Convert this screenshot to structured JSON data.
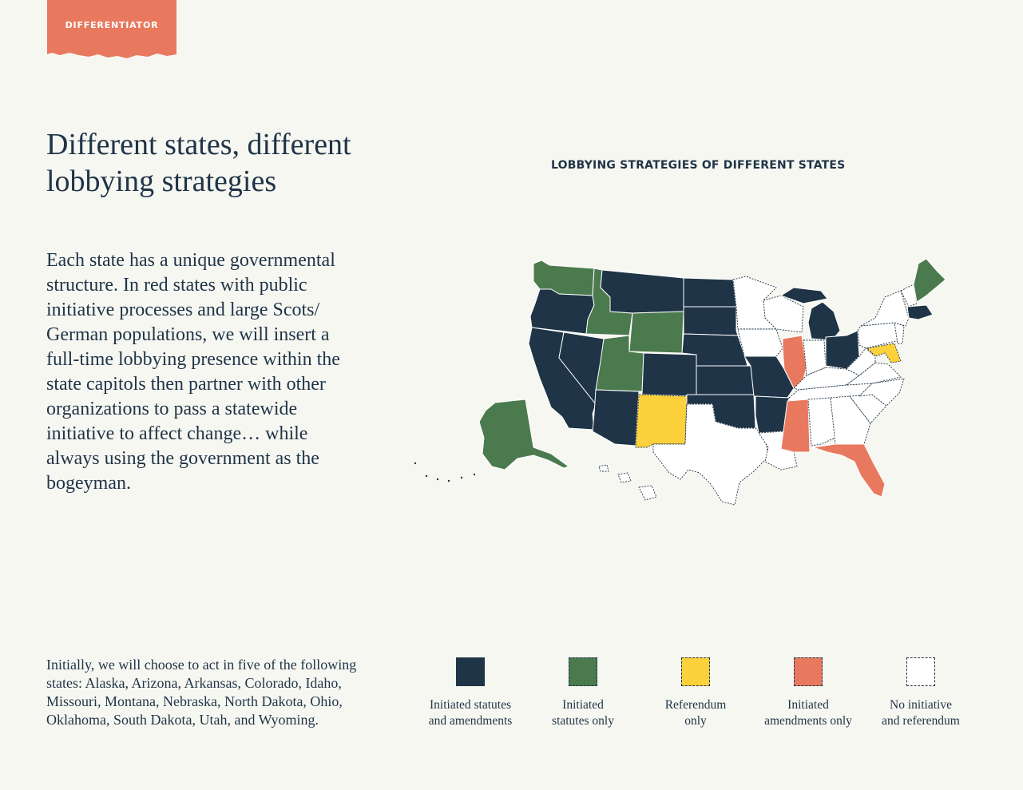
{
  "tag": {
    "label": "DIFFERENTIATOR",
    "color": "#e8795e"
  },
  "headline": {
    "title": "Different states, different lobbying strategies"
  },
  "body": {
    "text": "Each state has a unique governmental structure. In red states with public initiative processes and large Scots/ German populations, we will insert a full-time lobbying presence within the state capitols then partner with other organizations to pass a statewide initiative to affect change… while always using the government as the bogeyman."
  },
  "map": {
    "title": "LOBBYING STRATEGIES OF DIFFERENT STATES",
    "colors": {
      "statutes_and_amendments": "#1f3447",
      "statutes_only": "#4a7a4d",
      "referendum_only": "#fdd13b",
      "amendments_only": "#e8795e",
      "none": "#ffffff"
    },
    "legend": [
      {
        "label": "Initiated statutes\nand amendments",
        "color": "#1f3447"
      },
      {
        "label": "Initiated\nstatutes only",
        "color": "#4a7a4d"
      },
      {
        "label": "Referendum\nonly",
        "color": "#fdd13b"
      },
      {
        "label": "Initiated\namendments only",
        "color": "#e8795e"
      },
      {
        "label": "No initiative\nand referendum",
        "color": "#ffffff"
      }
    ]
  },
  "footnote": {
    "text": "Initially, we will choose to act in five of the following states: Alaska, Arizona, Arkansas, Colorado, Idaho, Missouri, Montana, Nebraska, North Dakota, Ohio, Oklahoma, South Dakota, Utah, and Wyoming."
  }
}
